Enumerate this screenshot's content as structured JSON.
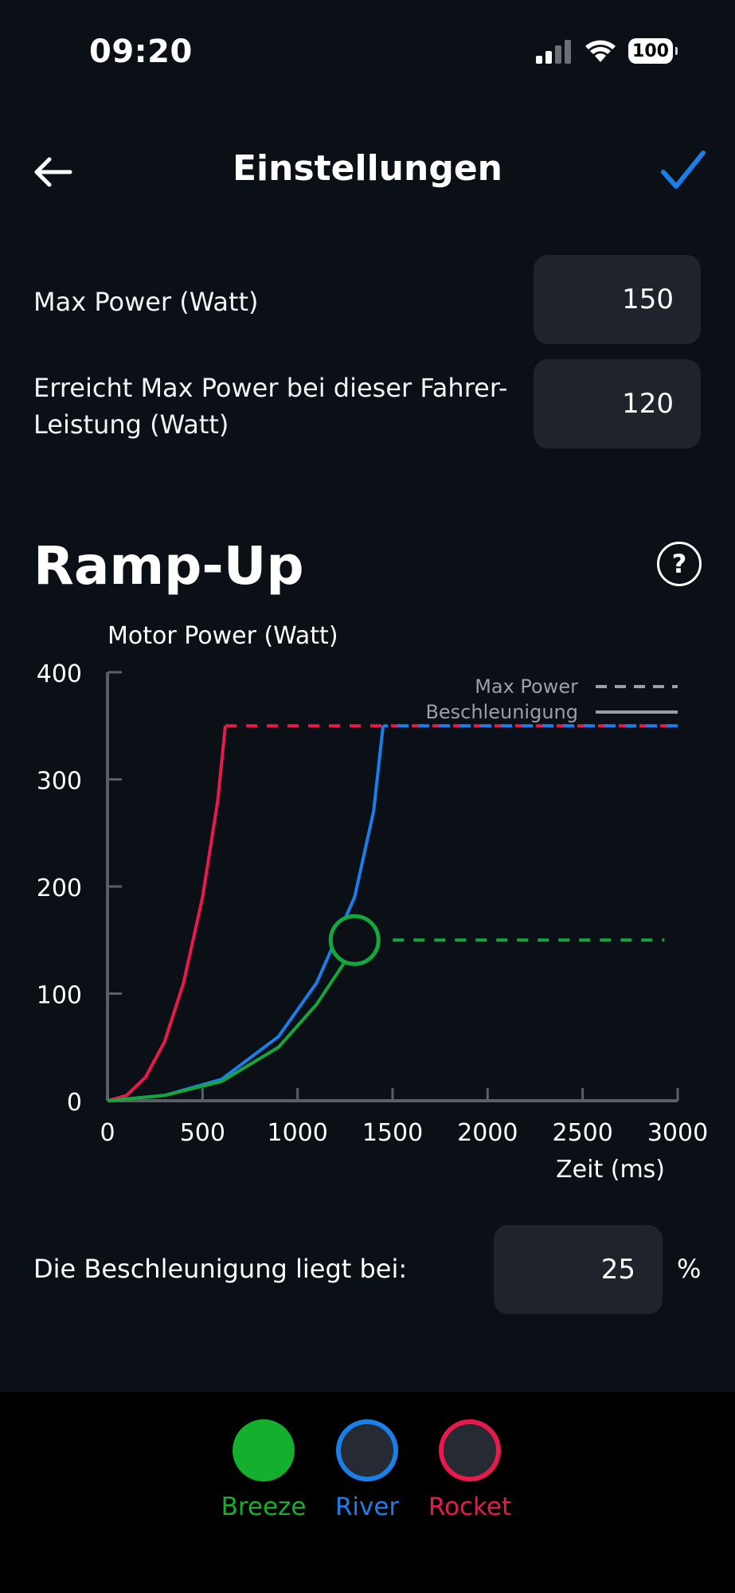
{
  "status_bar": {
    "time": "09:20",
    "battery": "100"
  },
  "header": {
    "title": "Einstellungen"
  },
  "settings": {
    "max_power_label": "Max Power (Watt)",
    "max_power_value": "150",
    "reach_label_line1": "Erreicht Max Power bei dieser Fahrer-",
    "reach_label_line2": "Leistung (Watt)",
    "reach_value": "120"
  },
  "rampup": {
    "title": "Ramp-Up",
    "help_symbol": "?"
  },
  "chart_data": {
    "type": "line",
    "ylabel": "Motor Power (Watt)",
    "xlabel": "Zeit (ms)",
    "xlim": [
      0,
      3000
    ],
    "ylim": [
      0,
      400
    ],
    "x_ticks": [
      0,
      500,
      1000,
      1500,
      2000,
      2500,
      3000
    ],
    "y_ticks": [
      0,
      100,
      200,
      300,
      400
    ],
    "legend": [
      {
        "label": "Max Power",
        "style": "dashed"
      },
      {
        "label": "Beschleunigung",
        "style": "solid"
      }
    ],
    "legend_position": "top-right",
    "series": [
      {
        "color": "#e8194b",
        "accel_points": [
          [
            0,
            0
          ],
          [
            100,
            5
          ],
          [
            200,
            22
          ],
          [
            300,
            55
          ],
          [
            400,
            110
          ],
          [
            500,
            190
          ],
          [
            580,
            280
          ],
          [
            620,
            350
          ]
        ],
        "max_power": 350
      },
      {
        "color": "#1a7fe8",
        "accel_points": [
          [
            0,
            0
          ],
          [
            300,
            5
          ],
          [
            600,
            20
          ],
          [
            900,
            60
          ],
          [
            1100,
            110
          ],
          [
            1300,
            190
          ],
          [
            1400,
            270
          ],
          [
            1450,
            350
          ]
        ],
        "max_power": 350
      },
      {
        "color": "#14a83c",
        "accel_points": [
          [
            0,
            0
          ],
          [
            300,
            5
          ],
          [
            600,
            18
          ],
          [
            900,
            50
          ],
          [
            1100,
            90
          ],
          [
            1250,
            130
          ],
          [
            1300,
            150
          ]
        ],
        "max_power": 150,
        "marker_at": [
          1300,
          150
        ]
      }
    ]
  },
  "acceleration": {
    "label": "Die Beschleunigung liegt bei:",
    "value": "25",
    "unit": "%"
  },
  "modes": [
    {
      "name": "Breeze",
      "color": "#14b02d",
      "selected": true
    },
    {
      "name": "River",
      "color": "#1a7fe8",
      "selected": false
    },
    {
      "name": "Rocket",
      "color": "#e8194b",
      "selected": false
    }
  ]
}
